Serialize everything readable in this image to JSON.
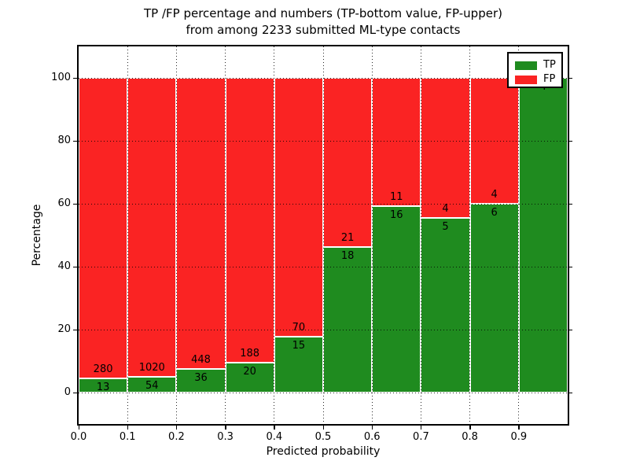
{
  "title": {
    "line1": "TP /FP percentage and numbers (TP-bottom value, FP-upper)",
    "line2": "from among 2233 submitted ML-type contacts"
  },
  "axes": {
    "xlabel": "Predicted probability",
    "ylabel": "Percentage",
    "x_ticklabels": [
      "0.0",
      "0.1",
      "0.2",
      "0.3",
      "0.4",
      "0.5",
      "0.6",
      "0.7",
      "0.8",
      "0.9"
    ],
    "y_ticklabels": [
      "0",
      "20",
      "40",
      "60",
      "80",
      "100"
    ]
  },
  "legend": {
    "position": "upper right",
    "items": [
      {
        "label": "TP",
        "color": "#1f8b1f"
      },
      {
        "label": "FP",
        "color": "#fa2323"
      }
    ]
  },
  "chart_data": {
    "type": "bar",
    "stacked": true,
    "title": "TP /FP percentage and numbers (TP-bottom value, FP-upper) from among 2233 submitted ML-type contacts",
    "xlabel": "Predicted probability",
    "ylabel": "Percentage",
    "total_contacts": 2233,
    "bin_edges": [
      0.0,
      0.1,
      0.2,
      0.3,
      0.4,
      0.5,
      0.6,
      0.7,
      0.8,
      0.9,
      1.0
    ],
    "series": [
      {
        "name": "TP",
        "color": "#1f8b1f",
        "counts": [
          13,
          54,
          36,
          20,
          15,
          18,
          16,
          5,
          6,
          4
        ]
      },
      {
        "name": "FP",
        "color": "#fa2323",
        "counts": [
          280,
          1020,
          448,
          188,
          70,
          21,
          11,
          4,
          4,
          0
        ]
      }
    ],
    "tp_percent": [
      4.44,
      5.03,
      7.44,
      9.62,
      17.65,
      46.15,
      59.26,
      55.56,
      60.0,
      100.0
    ],
    "tp_labels": [
      "13",
      "54",
      "36",
      "20",
      "15",
      "18",
      "16",
      "5",
      "6",
      "4"
    ],
    "fp_labels": [
      "280",
      "1020",
      "448",
      "188",
      "70",
      "21",
      "11",
      "4",
      "4",
      ""
    ],
    "xlim": [
      0.0,
      1.0
    ],
    "ylim": [
      -10,
      110
    ],
    "x_tickvals": [
      0.0,
      0.1,
      0.2,
      0.3,
      0.4,
      0.5,
      0.6,
      0.7,
      0.8,
      0.9
    ],
    "y_tickvals": [
      0,
      20,
      40,
      60,
      80,
      100
    ],
    "grid": true,
    "grid_style": "dotted",
    "legend_position": "upper right"
  }
}
